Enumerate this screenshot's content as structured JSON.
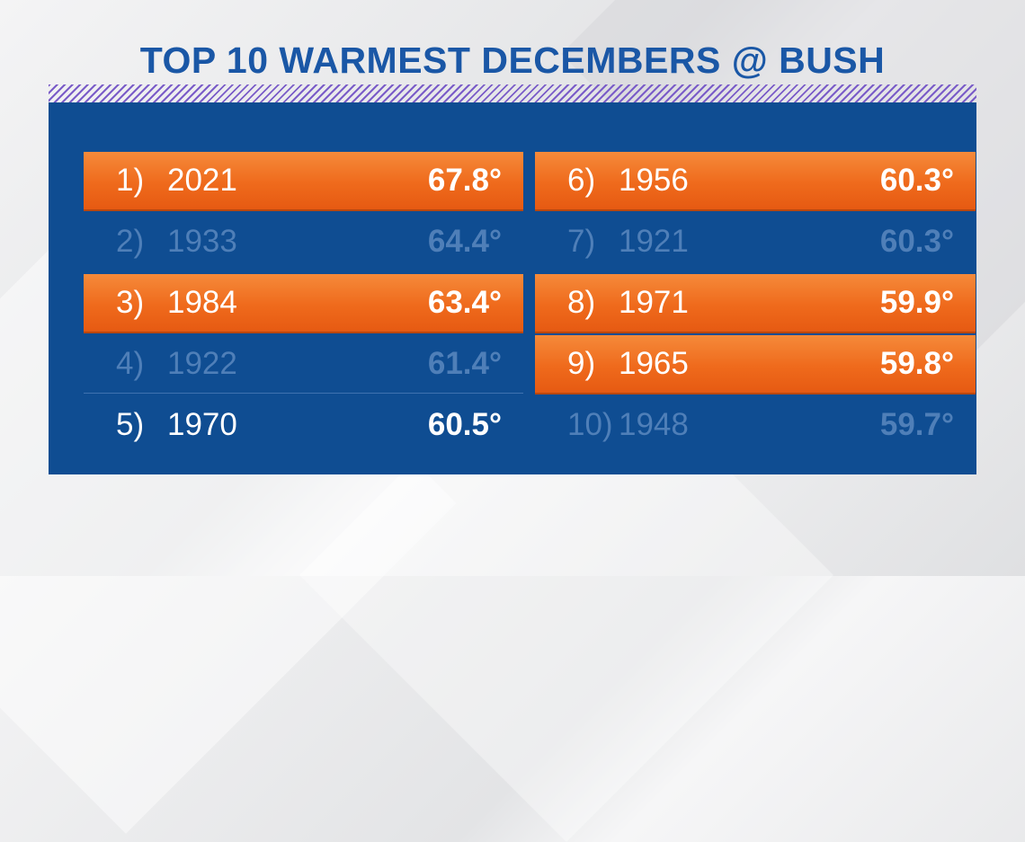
{
  "title": "TOP 10 WARMEST DECEMBERS @ BUSH",
  "colors": {
    "title": "#1a57a6",
    "panel": "#0f4d92",
    "highlight": "#ef6a1c",
    "dim_text": "#4f7fb8",
    "hatch": "#7a5cc8"
  },
  "left_column": [
    {
      "rank": "1)",
      "year": "2021",
      "temp": "67.8°",
      "style": "highlight"
    },
    {
      "rank": "2)",
      "year": "1933",
      "temp": "64.4°",
      "style": "dim"
    },
    {
      "rank": "3)",
      "year": "1984",
      "temp": "63.4°",
      "style": "highlight"
    },
    {
      "rank": "4)",
      "year": "1922",
      "temp": "61.4°",
      "style": "dim"
    },
    {
      "rank": "5)",
      "year": "1970",
      "temp": "60.5°",
      "style": "white"
    }
  ],
  "right_column": [
    {
      "rank": "6)",
      "year": "1956",
      "temp": "60.3°",
      "style": "highlight"
    },
    {
      "rank": "7)",
      "year": "1921",
      "temp": "60.3°",
      "style": "dim"
    },
    {
      "rank": "8)",
      "year": "1971",
      "temp": "59.9°",
      "style": "highlight"
    },
    {
      "rank": "9)",
      "year": "1965",
      "temp": "59.8°",
      "style": "highlight"
    },
    {
      "rank": "10)",
      "year": "1948",
      "temp": "59.7°",
      "style": "dim"
    }
  ]
}
